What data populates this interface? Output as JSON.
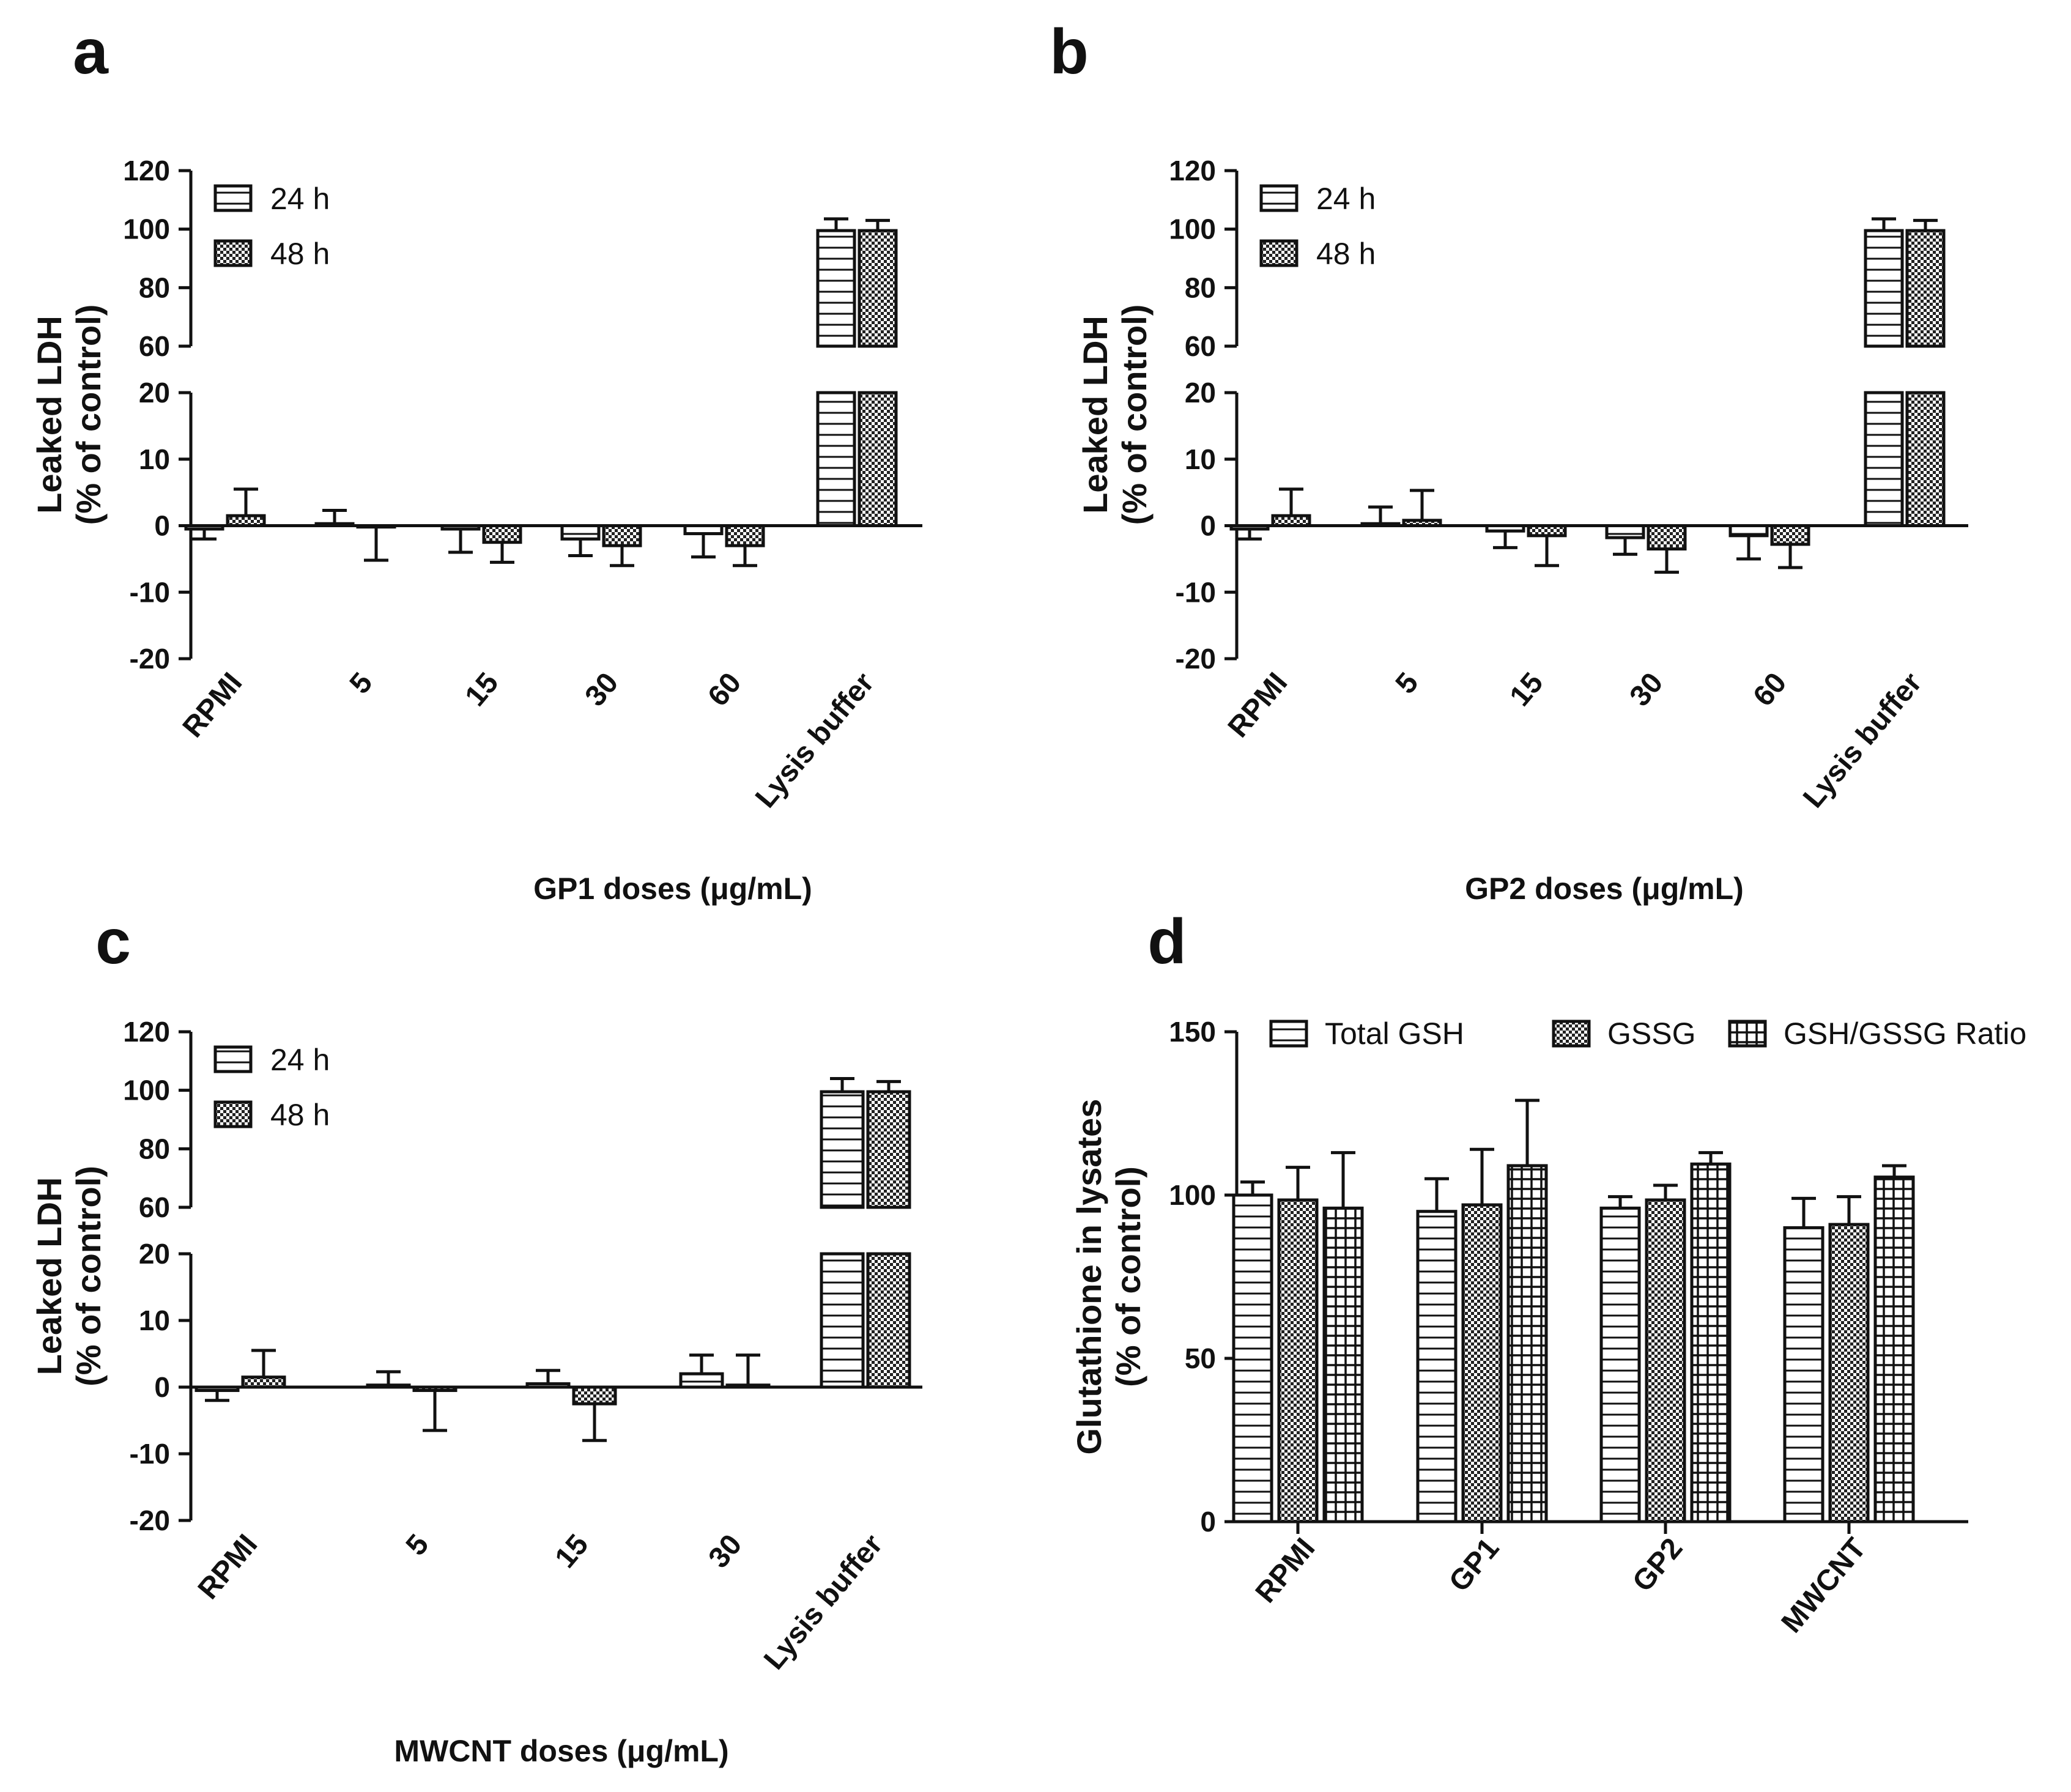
{
  "figure": {
    "panels": [
      "a",
      "b",
      "c",
      "d"
    ]
  },
  "patterns": {
    "stroke": "#111111",
    "h24": "horizontal-lines",
    "h48": "fine-crosshatch",
    "total_gsh": "horizontal-lines",
    "gssg": "fine-crosshatch",
    "ratio": "grid"
  },
  "chart_data": [
    {
      "panel": "a",
      "type": "bar",
      "title": "",
      "xlabel": "GP1 doses (μg/mL)",
      "ylabel": [
        "Leaked LDH",
        "(% of control)"
      ],
      "axis_break": {
        "lower": [
          -20,
          20
        ],
        "upper": [
          60,
          120
        ]
      },
      "yticks_lower": [
        "-20",
        "-10",
        "0",
        "10",
        "20"
      ],
      "yticks_upper": [
        "60",
        "80",
        "100",
        "120"
      ],
      "legend_position": "top-left",
      "categories": [
        "RPMI",
        "5",
        "15",
        "30",
        "60",
        "Lysis buffer"
      ],
      "series": [
        {
          "name": "24 h",
          "pattern": "h24",
          "values": [
            -0.5,
            0.3,
            -0.5,
            -2.0,
            -1.2,
            99.5
          ],
          "errors": [
            1.5,
            2.0,
            3.5,
            2.5,
            3.5,
            4.0
          ]
        },
        {
          "name": "48 h",
          "pattern": "h48",
          "values": [
            1.5,
            -0.2,
            -2.5,
            -3.0,
            -3.0,
            99.5
          ],
          "errors": [
            4.0,
            5.0,
            3.0,
            3.0,
            3.0,
            3.5
          ]
        }
      ]
    },
    {
      "panel": "b",
      "type": "bar",
      "title": "",
      "xlabel": "GP2 doses (μg/mL)",
      "ylabel": [
        "Leaked LDH",
        "(% of control)"
      ],
      "axis_break": {
        "lower": [
          -20,
          20
        ],
        "upper": [
          60,
          120
        ]
      },
      "yticks_lower": [
        "-20",
        "-10",
        "0",
        "10",
        "20"
      ],
      "yticks_upper": [
        "60",
        "80",
        "100",
        "120"
      ],
      "legend_position": "top-left",
      "categories": [
        "RPMI",
        "5",
        "15",
        "30",
        "60",
        "Lysis buffer"
      ],
      "series": [
        {
          "name": "24 h",
          "pattern": "h24",
          "values": [
            -0.5,
            0.3,
            -0.8,
            -1.8,
            -1.5,
            99.5
          ],
          "errors": [
            1.5,
            2.5,
            2.5,
            2.5,
            3.5,
            4.0
          ]
        },
        {
          "name": "48 h",
          "pattern": "h48",
          "values": [
            1.5,
            0.8,
            -1.5,
            -3.5,
            -2.8,
            99.5
          ],
          "errors": [
            4.0,
            4.5,
            4.5,
            3.5,
            3.5,
            3.5
          ]
        }
      ]
    },
    {
      "panel": "c",
      "type": "bar",
      "title": "",
      "xlabel": "MWCNT doses (μg/mL)",
      "ylabel": [
        "Leaked LDH",
        "(% of control)"
      ],
      "axis_break": {
        "lower": [
          -20,
          20
        ],
        "upper": [
          60,
          120
        ]
      },
      "yticks_lower": [
        "-20",
        "-10",
        "0",
        "10",
        "20"
      ],
      "yticks_upper": [
        "60",
        "80",
        "100",
        "120"
      ],
      "legend_position": "top-left",
      "categories": [
        "RPMI",
        "5",
        "15",
        "30",
        "Lysis buffer"
      ],
      "series": [
        {
          "name": "24 h",
          "pattern": "h24",
          "values": [
            -0.5,
            0.3,
            0.5,
            2.0,
            99.5
          ],
          "errors": [
            1.5,
            2.0,
            2.0,
            2.8,
            4.5
          ]
        },
        {
          "name": "48 h",
          "pattern": "h48",
          "values": [
            1.5,
            -0.5,
            -2.5,
            0.3,
            99.5
          ],
          "errors": [
            4.0,
            6.0,
            5.5,
            4.5,
            3.5
          ]
        }
      ]
    },
    {
      "panel": "d",
      "type": "bar",
      "title": "",
      "xlabel": "",
      "ylabel": [
        "Glutathione in lysates",
        "(% of control)"
      ],
      "ylim": [
        0,
        150
      ],
      "yticks": [
        "0",
        "50",
        "100",
        "150"
      ],
      "legend_position": "top",
      "categories": [
        "RPMI",
        "GP1",
        "GP2",
        "MWCNT"
      ],
      "series": [
        {
          "name": "Total GSH",
          "pattern": "total_gsh",
          "values": [
            100,
            95,
            96,
            90
          ],
          "errors": [
            4,
            10,
            3.5,
            9
          ]
        },
        {
          "name": "GSSG",
          "pattern": "gssg",
          "values": [
            98.5,
            97,
            98.5,
            91
          ],
          "errors": [
            10,
            17,
            4.5,
            8.5
          ]
        },
        {
          "name": "GSH/GSSG Ratio",
          "pattern": "ratio",
          "values": [
            96,
            109,
            109.5,
            105.5
          ],
          "errors": [
            17,
            20,
            3.5,
            3.5
          ]
        }
      ]
    }
  ]
}
